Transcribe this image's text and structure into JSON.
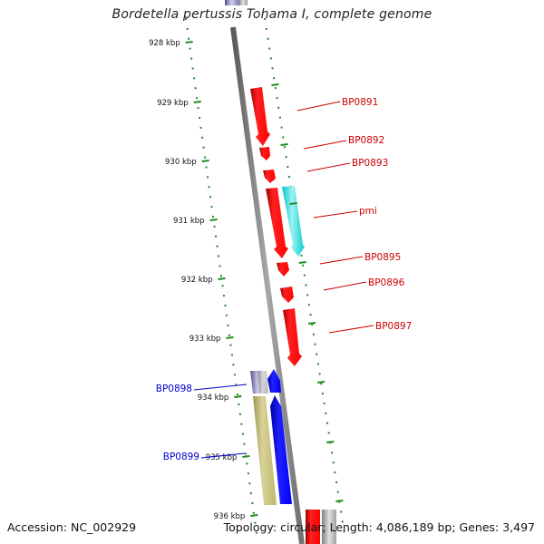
{
  "title": "Bordetella pertussis Tohama I, complete genome",
  "footer": {
    "accession": "Accession: NC_002929",
    "summary": "Topology: circular; Length: 4,086,189 bp; Genes: 3,497"
  },
  "colors": {
    "forward_gene": "#ff0000",
    "pmi_gene": "#00cccc",
    "reverse_gene": "#0000ff",
    "olive_gene": "#bdb76b",
    "lavender_gene": "#9090c0",
    "tick_green": "#228b22",
    "backbone": "#808080",
    "forward_label": "#cc0000",
    "reverse_label": "#0000cc"
  },
  "scale_ticks": [
    "928 kbp",
    "929 kbp",
    "930 kbp",
    "931 kbp",
    "932 kbp",
    "933 kbp",
    "934 kbp",
    "935 kbp",
    "936 kbp"
  ],
  "gene_labels": [
    {
      "name": "BP0891",
      "strand": "forward"
    },
    {
      "name": "BP0892",
      "strand": "forward"
    },
    {
      "name": "BP0893",
      "strand": "forward"
    },
    {
      "name": "pmi",
      "strand": "forward"
    },
    {
      "name": "BP0895",
      "strand": "forward"
    },
    {
      "name": "BP0896",
      "strand": "forward"
    },
    {
      "name": "BP0897",
      "strand": "forward"
    },
    {
      "name": "BP0898",
      "strand": "reverse"
    },
    {
      "name": "BP0899",
      "strand": "reverse"
    }
  ]
}
